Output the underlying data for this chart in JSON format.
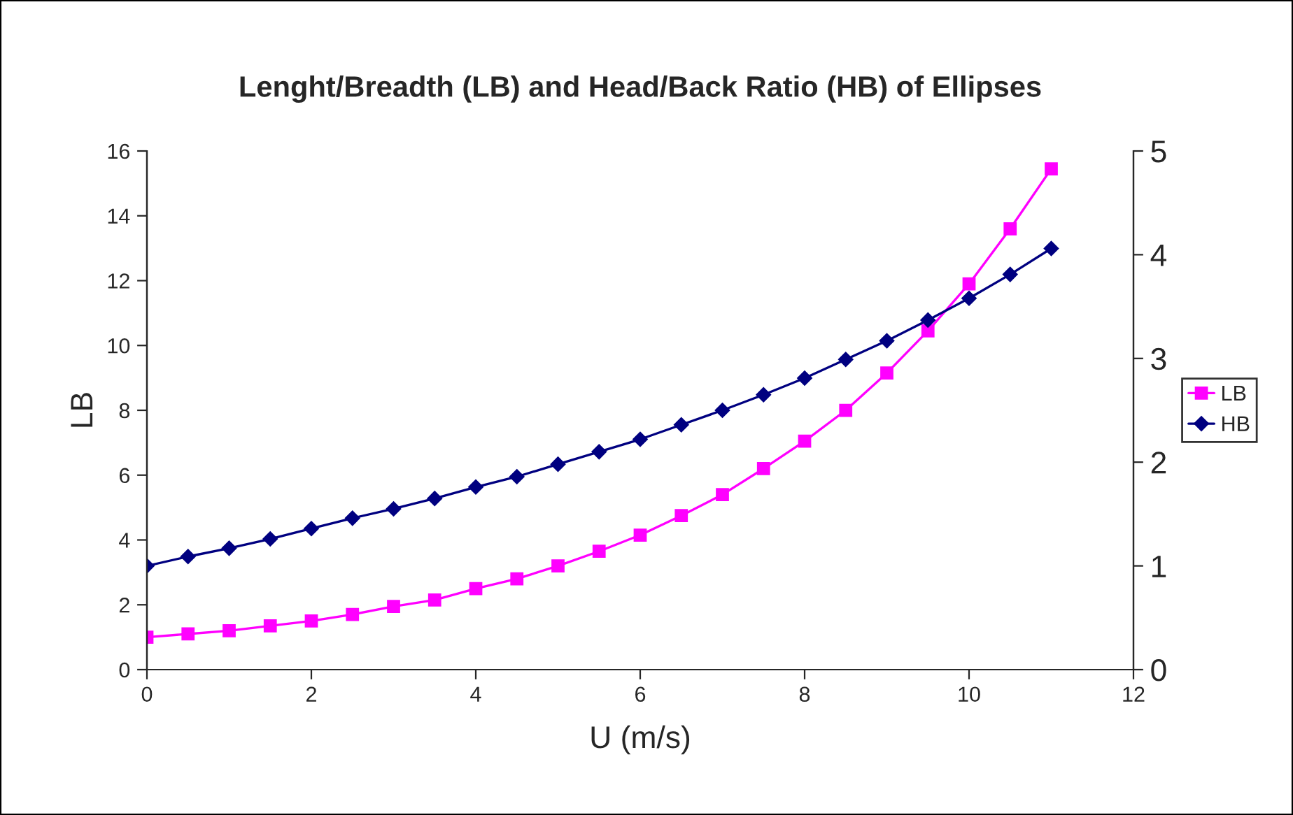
{
  "chart_data": {
    "type": "line",
    "title": "Lenght/Breadth (LB) and Head/Back Ratio (HB) of Ellipses",
    "xlabel": "U (m/s)",
    "ylabel": "LB",
    "x": [
      0,
      0.5,
      1,
      1.5,
      2,
      2.5,
      3,
      3.5,
      4,
      4.5,
      5,
      5.5,
      6,
      6.5,
      7,
      7.5,
      8,
      8.5,
      9,
      9.5,
      10,
      10.5,
      11
    ],
    "series": [
      {
        "name": "LB",
        "color": "#ff00ff",
        "marker": "square",
        "values": [
          1.0,
          1.1,
          1.2,
          1.35,
          1.5,
          1.7,
          1.95,
          2.15,
          2.5,
          2.8,
          3.2,
          3.65,
          4.15,
          4.75,
          5.4,
          6.2,
          7.05,
          8.0,
          9.15,
          10.45,
          11.9,
          13.6,
          15.45
        ]
      },
      {
        "name": "HB",
        "color": "#000080",
        "marker": "diamond",
        "axis": "y2",
        "values": [
          1.0,
          1.09,
          1.17,
          1.26,
          1.36,
          1.46,
          1.55,
          1.65,
          1.76,
          1.86,
          1.98,
          2.1,
          2.22,
          2.36,
          2.5,
          2.65,
          2.81,
          2.99,
          3.17,
          3.37,
          3.58,
          3.81,
          4.06
        ]
      }
    ],
    "xlim": [
      0,
      12
    ],
    "xticks": [
      0,
      2,
      4,
      6,
      8,
      10,
      12
    ],
    "ylim": [
      0,
      16
    ],
    "yticks": [
      0,
      2,
      4,
      6,
      8,
      10,
      12,
      14,
      16
    ],
    "y2lim": [
      0,
      5
    ],
    "y2ticks": [
      0,
      1,
      2,
      3,
      4,
      5
    ],
    "grid": false,
    "legend": "right",
    "line_style": "solid"
  }
}
